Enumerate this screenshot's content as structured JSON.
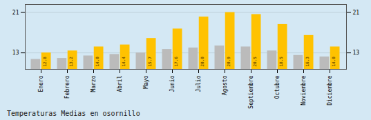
{
  "chart_data": {
    "type": "bar",
    "title": "Temperaturas Medias en osornillo",
    "categories": [
      "Enero",
      "Febrero",
      "Marzo",
      "Abril",
      "Mayo",
      "Junio",
      "Julio",
      "Agosto",
      "Septiembre",
      "Octubre",
      "Noviembre",
      "Diciembre"
    ],
    "series": [
      {
        "color": "#BBBBBB",
        "values": [
          11.5,
          11.7,
          12.2,
          12.5,
          12.8,
          13.5,
          13.8,
          14.2,
          14.0,
          13.2,
          12.3,
          12.0
        ]
      },
      {
        "color": "#FFC200",
        "values": [
          12.8,
          13.2,
          14.0,
          14.4,
          15.7,
          17.6,
          20.0,
          20.9,
          20.5,
          18.5,
          16.3,
          14.0
        ],
        "data_labels": true,
        "value_labels": [
          "12.8",
          "13.2",
          "14.0",
          "14.4",
          "15.7",
          "17.6",
          "20.0",
          "20.9",
          "20.5",
          "18.5",
          "16.3",
          "14.0"
        ]
      }
    ],
    "ylim": [
      9.5,
      22.5
    ],
    "yticks": [
      12.8,
      20.9
    ],
    "grid": true
  }
}
